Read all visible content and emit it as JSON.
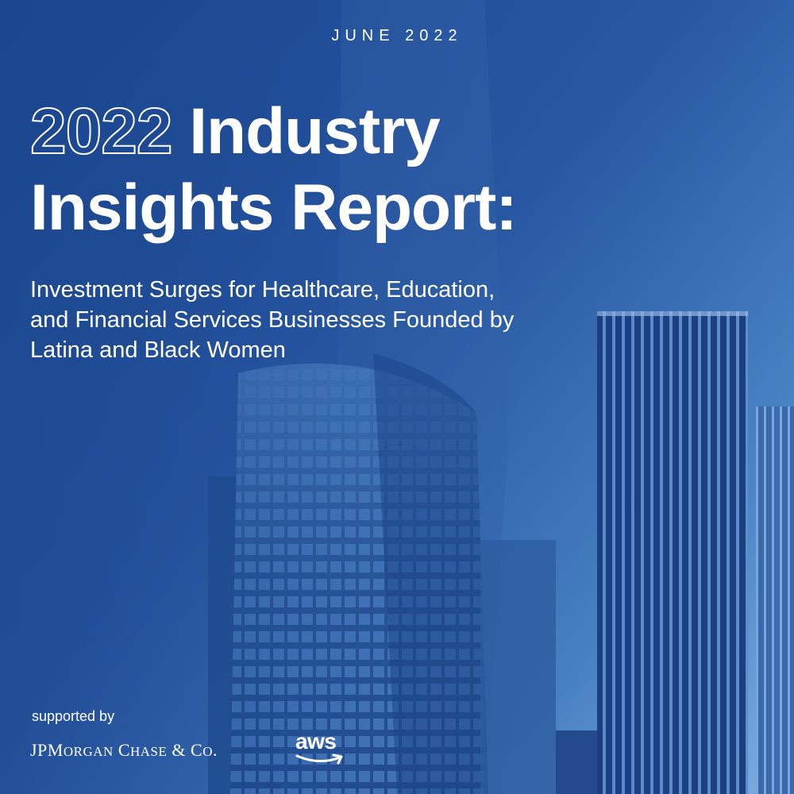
{
  "header": {
    "date": "JUNE 2022"
  },
  "title": {
    "outlined": "2022",
    "rest_line1": "Industry",
    "line2": "Insights Report:"
  },
  "subtitle": {
    "line1": "Investment Surges for Healthcare, Education,",
    "line2": "and Financial Services Businesses Founded by",
    "line3": "Latina and Black Women"
  },
  "footer": {
    "supported_label": "supported by",
    "sponsor1": {
      "jp": "JP",
      "m": "M",
      "organ": "ORGAN",
      "c": "C",
      "hase": "HASE",
      "amp": " & ",
      "co_c": "C",
      "co_o": "O",
      "dot": "."
    },
    "sponsor2": "aws"
  },
  "colors": {
    "background_dark": "#1b4892",
    "background_light": "#7fb0e0",
    "text": "#ffffff"
  }
}
